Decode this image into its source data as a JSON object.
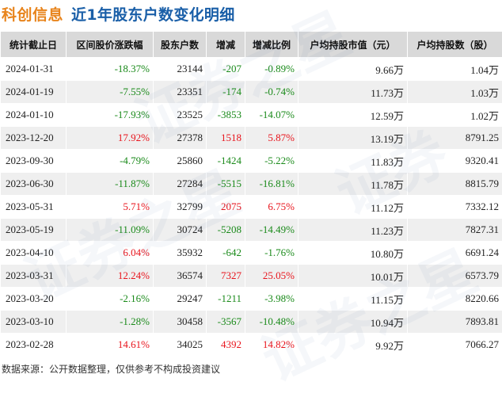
{
  "header": {
    "company": "科创信息",
    "subtitle": "近1年股东户数变化明细"
  },
  "table": {
    "columns": [
      "统计截止日",
      "区间股价涨跌幅",
      "股东户数",
      "增减",
      "增减比例",
      "户均持股市值（元）",
      "户均持股数（股）"
    ],
    "rows": [
      {
        "date": "2024-01-31",
        "price_change": "-18.37%",
        "holders": "23144",
        "delta": "-207",
        "delta_pct": "-0.89%",
        "avg_value": "9.66万",
        "avg_shares": "1.04万"
      },
      {
        "date": "2024-01-19",
        "price_change": "-7.55%",
        "holders": "23351",
        "delta": "-174",
        "delta_pct": "-0.74%",
        "avg_value": "11.73万",
        "avg_shares": "1.03万"
      },
      {
        "date": "2024-01-10",
        "price_change": "-17.93%",
        "holders": "23525",
        "delta": "-3853",
        "delta_pct": "-14.07%",
        "avg_value": "12.59万",
        "avg_shares": "1.02万"
      },
      {
        "date": "2023-12-20",
        "price_change": "17.92%",
        "holders": "27378",
        "delta": "1518",
        "delta_pct": "5.87%",
        "avg_value": "13.19万",
        "avg_shares": "8791.25"
      },
      {
        "date": "2023-09-30",
        "price_change": "-4.79%",
        "holders": "25860",
        "delta": "-1424",
        "delta_pct": "-5.22%",
        "avg_value": "11.83万",
        "avg_shares": "9320.41"
      },
      {
        "date": "2023-06-30",
        "price_change": "-11.87%",
        "holders": "27284",
        "delta": "-5515",
        "delta_pct": "-16.81%",
        "avg_value": "11.78万",
        "avg_shares": "8815.79"
      },
      {
        "date": "2023-05-31",
        "price_change": "5.71%",
        "holders": "32799",
        "delta": "2075",
        "delta_pct": "6.75%",
        "avg_value": "11.12万",
        "avg_shares": "7332.12"
      },
      {
        "date": "2023-05-19",
        "price_change": "-11.09%",
        "holders": "30724",
        "delta": "-5208",
        "delta_pct": "-14.49%",
        "avg_value": "11.23万",
        "avg_shares": "7827.31"
      },
      {
        "date": "2023-04-10",
        "price_change": "6.04%",
        "holders": "35932",
        "delta": "-642",
        "delta_pct": "-1.76%",
        "avg_value": "10.80万",
        "avg_shares": "6691.24"
      },
      {
        "date": "2023-03-31",
        "price_change": "12.24%",
        "holders": "36574",
        "delta": "7327",
        "delta_pct": "25.05%",
        "avg_value": "10.01万",
        "avg_shares": "6573.79"
      },
      {
        "date": "2023-03-20",
        "price_change": "-2.16%",
        "holders": "29247",
        "delta": "-1211",
        "delta_pct": "-3.98%",
        "avg_value": "11.15万",
        "avg_shares": "8220.66"
      },
      {
        "date": "2023-03-10",
        "price_change": "-1.28%",
        "holders": "30458",
        "delta": "-3567",
        "delta_pct": "-10.48%",
        "avg_value": "10.94万",
        "avg_shares": "7893.81"
      },
      {
        "date": "2023-02-28",
        "price_change": "14.61%",
        "holders": "34025",
        "delta": "4392",
        "delta_pct": "14.82%",
        "avg_value": "9.92万",
        "avg_shares": "7066.27"
      }
    ]
  },
  "footer": {
    "note": "数据来源：公开数据整理，仅供参考不构成投资建议"
  },
  "colors": {
    "positive": "#e8141c",
    "negative": "#1a8a1a",
    "header_bg": "#d9d9d9",
    "stripe_bg": "#efefef",
    "company_title": "#e8841c",
    "subtitle": "#1a5fa8"
  }
}
